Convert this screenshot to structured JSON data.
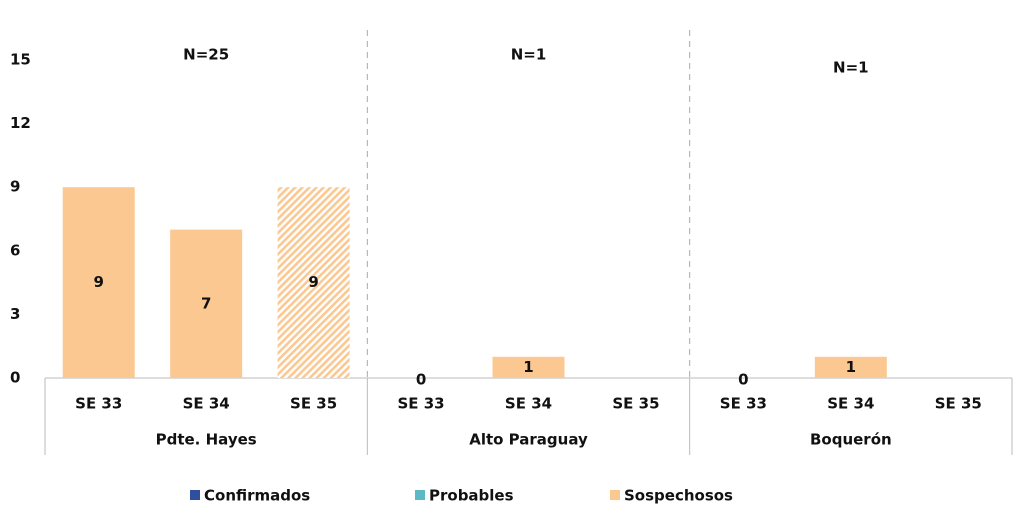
{
  "chart_data": {
    "type": "bar",
    "stacked": true,
    "categories": [
      "SE 33",
      "SE 34",
      "SE 35",
      "SE 33",
      "SE 34",
      "SE 35",
      "SE 33",
      "SE 34",
      "SE 35"
    ],
    "groups": [
      {
        "name": "Pdte. Hayes",
        "label": "N=25"
      },
      {
        "name": "Alto Paraguay",
        "label": "N=1"
      },
      {
        "name": "Boquerón",
        "label": "N=1"
      }
    ],
    "series": [
      {
        "name": "Confirmados",
        "color": "#2e4f9e",
        "values": [
          0,
          0,
          0,
          0,
          0,
          0,
          0,
          0,
          0
        ]
      },
      {
        "name": "Probables",
        "color": "#5bb8c4",
        "values": [
          0,
          0,
          0,
          0,
          0,
          0,
          0,
          0,
          0
        ]
      },
      {
        "name": "Sospechosos",
        "color": "#fcc892",
        "values": [
          9,
          7,
          9,
          0,
          1,
          null,
          0,
          1,
          null
        ],
        "hatched": [
          false,
          false,
          true,
          false,
          false,
          false,
          false,
          false,
          false
        ],
        "show_labels": true
      }
    ],
    "ylim": [
      0,
      15
    ],
    "yticks": [
      0,
      3,
      6,
      9,
      12,
      15
    ],
    "legend": "bottom"
  }
}
